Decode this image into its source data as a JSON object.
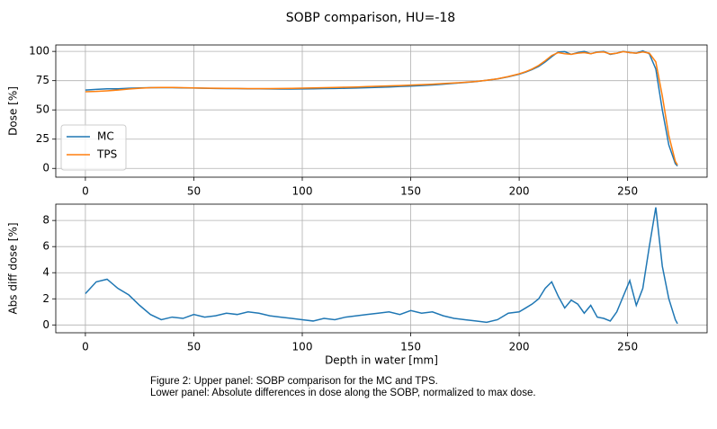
{
  "title": "SOBP comparison, HU=-18",
  "caption": [
    "Figure 2: Upper panel: SOBP comparison for the MC and TPS.",
    "Lower panel: Absolute differences in dose along the SOBP, normalized to max dose."
  ],
  "chart_data": [
    {
      "type": "line",
      "ylabel": "Dose [%]",
      "x": [
        0,
        5,
        10,
        15,
        20,
        25,
        30,
        35,
        40,
        45,
        50,
        55,
        60,
        65,
        70,
        75,
        80,
        85,
        90,
        95,
        100,
        105,
        110,
        115,
        120,
        125,
        130,
        135,
        140,
        145,
        150,
        155,
        160,
        165,
        170,
        175,
        180,
        185,
        190,
        195,
        200,
        203,
        206,
        209,
        212,
        215,
        218,
        221,
        224,
        227,
        230,
        233,
        236,
        239,
        242,
        245,
        248,
        251,
        254,
        257,
        260,
        263,
        266,
        269,
        272,
        273
      ],
      "series": [
        {
          "name": "MC",
          "color": "#1f77b4",
          "values": [
            67,
            67.5,
            68,
            68,
            68.5,
            68.8,
            69,
            69,
            69,
            68.8,
            68.7,
            68.5,
            68.3,
            68.2,
            68.2,
            68,
            68,
            67.9,
            67.8,
            67.8,
            67.9,
            68,
            68.2,
            68.3,
            68.5,
            68.7,
            69,
            69.3,
            69.6,
            70,
            70.3,
            70.8,
            71.3,
            72,
            72.7,
            73.4,
            74.2,
            75.3,
            76.5,
            78.3,
            80.5,
            82.3,
            84.5,
            87.2,
            91,
            95.5,
            99.5,
            99.8,
            97.5,
            99,
            100,
            98,
            99.5,
            100,
            97.5,
            98.5,
            100,
            99,
            98.5,
            100.5,
            98,
            85,
            50,
            20,
            4,
            2
          ]
        },
        {
          "name": "TPS",
          "color": "#ff7f0e",
          "values": [
            65.5,
            65.8,
            66.3,
            67,
            67.8,
            68.5,
            69,
            69.2,
            69.2,
            69,
            68.8,
            68.6,
            68.5,
            68.4,
            68.3,
            68.2,
            68.2,
            68.2,
            68.3,
            68.4,
            68.6,
            68.8,
            69,
            69.2,
            69.4,
            69.6,
            69.9,
            70.2,
            70.5,
            70.8,
            71.2,
            71.6,
            72,
            72.5,
            73,
            73.6,
            74.3,
            75.3,
            76.6,
            78.5,
            80.8,
            82.7,
            85,
            88,
            92,
            96.5,
            99,
            98,
            97.5,
            98.5,
            99,
            98,
            99.3,
            99.5,
            97.8,
            98.5,
            99.8,
            99,
            98.5,
            99.5,
            98.5,
            91,
            62,
            28,
            6,
            3
          ]
        }
      ],
      "xlim": [
        -13.65,
        286.65
      ],
      "xticks": [
        0,
        50,
        100,
        150,
        200,
        250
      ],
      "ylim": [
        -7.5,
        105.5
      ],
      "yticks": [
        0,
        25,
        50,
        75,
        100
      ],
      "grid": true,
      "legend": "lower left"
    },
    {
      "type": "line",
      "ylabel": "Abs diff dose [%]",
      "xlabel": "Depth in water [mm]",
      "x": [
        0,
        5,
        10,
        15,
        20,
        25,
        30,
        35,
        40,
        45,
        50,
        55,
        60,
        65,
        70,
        75,
        80,
        85,
        90,
        95,
        100,
        105,
        110,
        115,
        120,
        125,
        130,
        135,
        140,
        145,
        150,
        155,
        160,
        165,
        170,
        175,
        180,
        185,
        190,
        195,
        200,
        203,
        206,
        209,
        212,
        215,
        218,
        221,
        224,
        227,
        230,
        233,
        236,
        239,
        242,
        245,
        248,
        251,
        254,
        257,
        260,
        263,
        266,
        269,
        272,
        273
      ],
      "series": [
        {
          "color": "#1f77b4",
          "values": [
            2.4,
            3.3,
            3.5,
            2.8,
            2.3,
            1.5,
            0.8,
            0.4,
            0.6,
            0.5,
            0.8,
            0.6,
            0.7,
            0.9,
            0.8,
            1.0,
            0.9,
            0.7,
            0.6,
            0.5,
            0.4,
            0.3,
            0.5,
            0.4,
            0.6,
            0.7,
            0.8,
            0.9,
            1.0,
            0.8,
            1.1,
            0.9,
            1.0,
            0.7,
            0.5,
            0.4,
            0.3,
            0.2,
            0.4,
            0.9,
            1.0,
            1.3,
            1.6,
            2.0,
            2.8,
            3.3,
            2.2,
            1.3,
            1.9,
            1.6,
            0.9,
            1.5,
            0.6,
            0.5,
            0.3,
            1.0,
            2.2,
            3.4,
            1.5,
            2.8,
            6.0,
            9.0,
            4.5,
            2.0,
            0.4,
            0.1
          ]
        }
      ],
      "xlim": [
        -13.65,
        286.65
      ],
      "xticks": [
        0,
        50,
        100,
        150,
        200,
        250
      ],
      "ylim": [
        -0.6,
        9.25
      ],
      "yticks": [
        0,
        2,
        4,
        6,
        8
      ],
      "grid": true
    }
  ]
}
